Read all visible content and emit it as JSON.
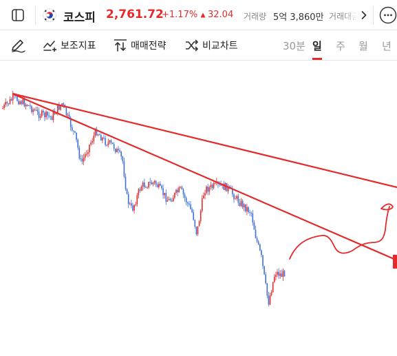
{
  "header": {
    "sidebar_icon": "sidebar-panel-icon",
    "flag_icon": "korea-flag-icon",
    "name": "코스피",
    "price": "2,761.72",
    "change_percent": "+1.17%",
    "change_value": "32.04",
    "volume_label": "거래량",
    "volume_value": "5억 3,860만",
    "amount_label": "거래대금",
    "next_icon": "chevron-right-icon",
    "more_icon": "more-horizontal-icon"
  },
  "toolbar": {
    "draw_icon": "pen-icon",
    "indicator_label": "보조지표",
    "strategy_label": "매매전략",
    "compare_label": "비교차트",
    "periods": [
      "30분",
      "일",
      "주",
      "월",
      "년"
    ],
    "selected_period": "일"
  },
  "colors": {
    "up": "#e42a2a",
    "down": "#3d6fd9",
    "drawing": "#e42a2a"
  }
}
